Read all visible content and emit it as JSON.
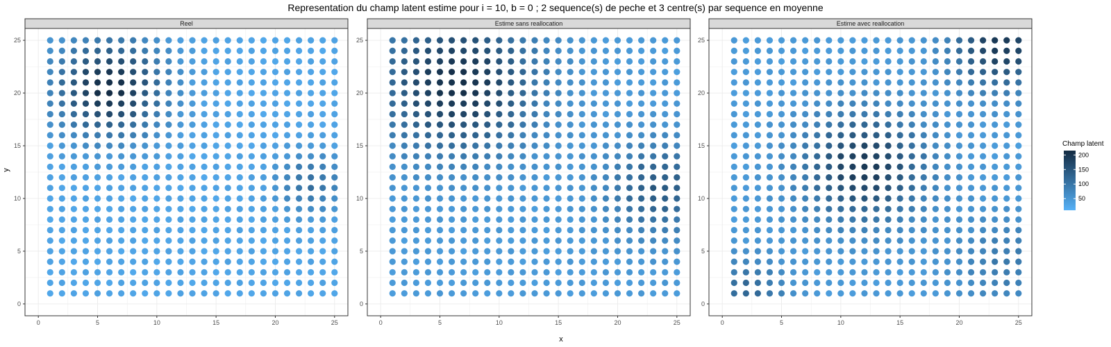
{
  "chart_data": {
    "type": "scatter",
    "title": "Representation du champ latent estime pour i = 10, b = 0 ; 2 sequence(s) de peche et 3 centre(s) par sequence en moyenne",
    "xlabel": "x",
    "ylabel": "y",
    "xlim": [
      0,
      25
    ],
    "ylim": [
      0,
      25
    ],
    "x_ticks": [
      0,
      5,
      10,
      15,
      20,
      25
    ],
    "y_ticks": [
      0,
      5,
      10,
      15,
      20,
      25
    ],
    "grid_x_points": [
      1,
      25
    ],
    "grid_y_points": [
      1,
      25
    ],
    "grid": true,
    "legend": {
      "title": "Champ latent",
      "placement": "right",
      "breaks": [
        200,
        150,
        100,
        50
      ],
      "range": [
        10,
        215
      ],
      "color_low": "#56B1F7",
      "color_high": "#132B43"
    },
    "panels": [
      {
        "name": "Reel",
        "base": 30,
        "hotspots": [
          {
            "x": 6,
            "y": 20.5,
            "peak": 185,
            "sigma": 3.2
          },
          {
            "x": 23,
            "y": 11.5,
            "peak": 80,
            "sigma": 2.0
          }
        ]
      },
      {
        "name": "Estime sans reallocation",
        "base": 45,
        "hotspots": [
          {
            "x": 6.5,
            "y": 21,
            "peak": 165,
            "sigma": 4.5
          },
          {
            "x": 23.5,
            "y": 11,
            "peak": 100,
            "sigma": 3.0
          }
        ]
      },
      {
        "name": "Estime avec reallocation",
        "base": 45,
        "hotspots": [
          {
            "x": 12,
            "y": 13,
            "peak": 150,
            "sigma": 3.5
          },
          {
            "x": 23.5,
            "y": 24.5,
            "peak": 150,
            "sigma": 2.8
          },
          {
            "x": 2,
            "y": 1,
            "peak": 80,
            "sigma": 2.2
          },
          {
            "x": 24,
            "y": 4,
            "peak": 50,
            "sigma": 3.0
          }
        ]
      }
    ]
  }
}
